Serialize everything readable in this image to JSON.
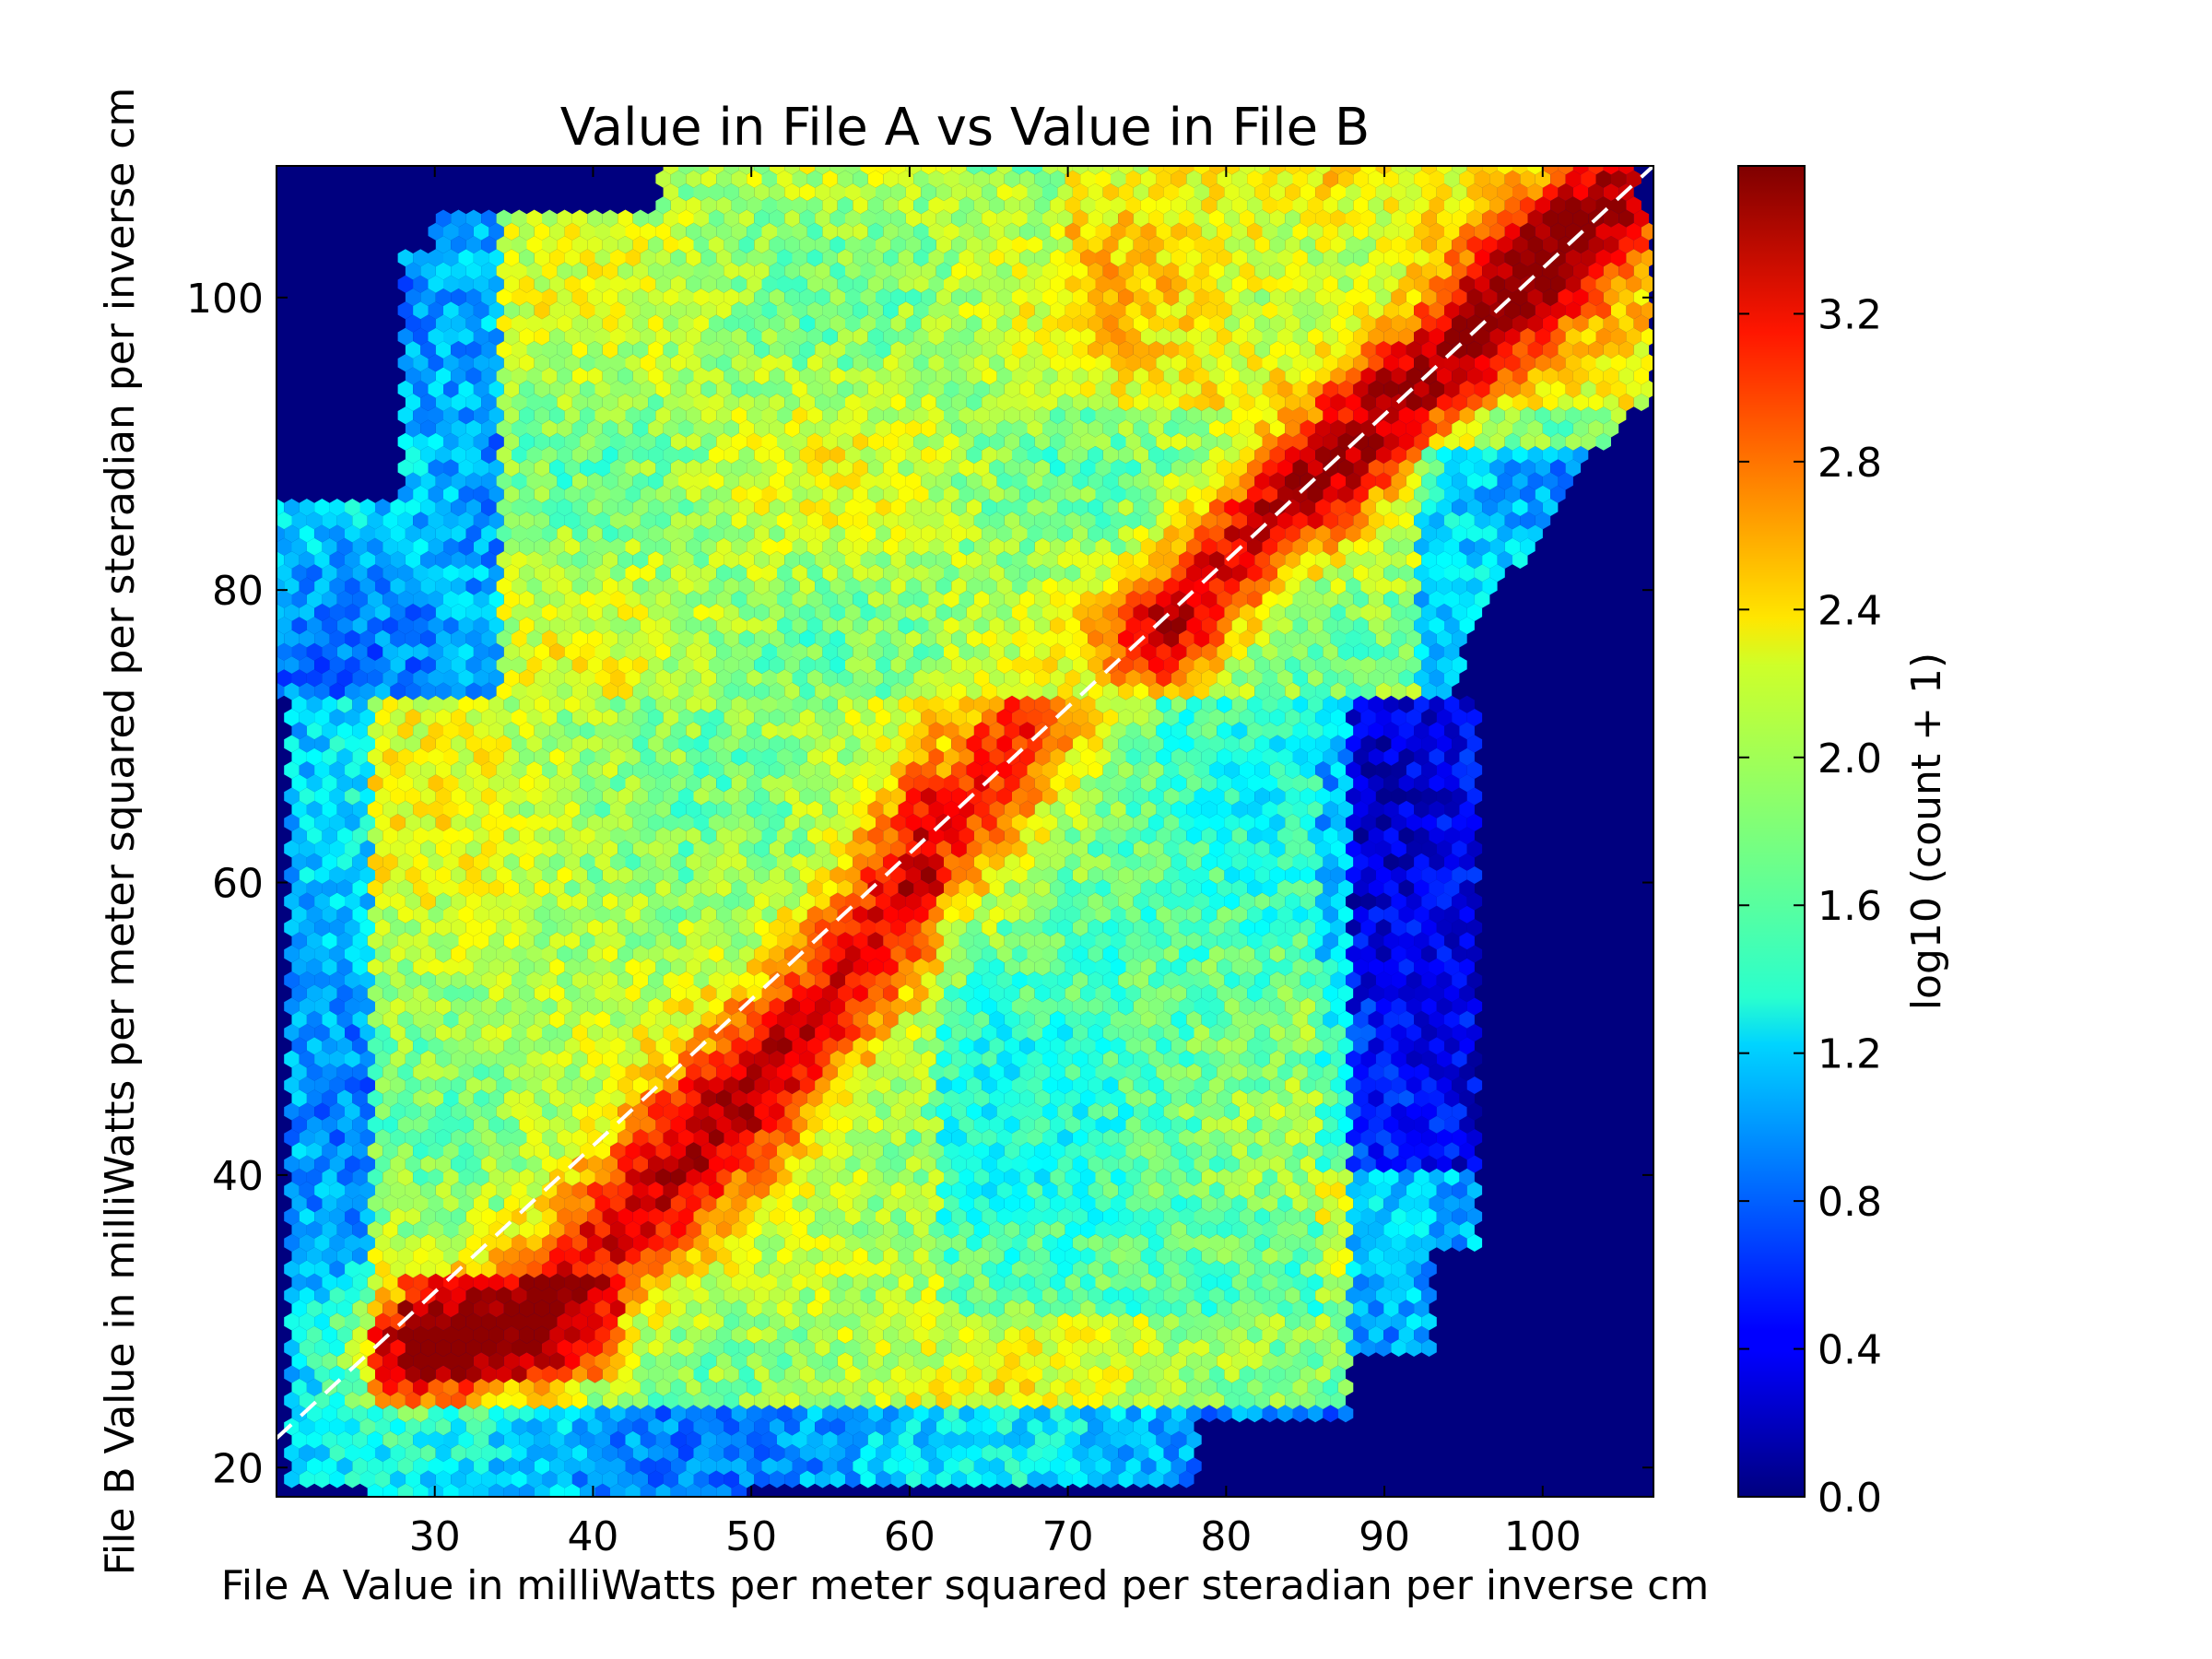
{
  "chart_data": {
    "type": "heatmap",
    "subtype": "hexbin",
    "title": "Value in File A vs Value in File B",
    "xlabel": "File A Value in milliWatts per meter squared per steradian per inverse cm",
    "ylabel": "File B Value in milliWatts per meter squared per steradian per inverse cm",
    "xlim": [
      20,
      107
    ],
    "ylim": [
      18,
      109
    ],
    "x_ticks": [
      "30",
      "40",
      "50",
      "60",
      "70",
      "80",
      "90",
      "100"
    ],
    "y_ticks": [
      "20",
      "40",
      "60",
      "80",
      "100"
    ],
    "colorbar": {
      "label": "log10 (count + 1)",
      "range": [
        0.0,
        3.6
      ],
      "ticks": [
        "0.0",
        "0.4",
        "0.8",
        "1.2",
        "1.6",
        "2.0",
        "2.4",
        "2.8",
        "3.2"
      ],
      "colormap": "jet"
    },
    "reference_line": {
      "style": "dashed",
      "color": "#ffffff",
      "from": [
        20,
        22
      ],
      "to": [
        107,
        109
      ]
    },
    "density_description": [
      {
        "region": "lower block",
        "x": [
          21,
          96
        ],
        "y": [
          18,
          73
        ]
      },
      {
        "region": "upper block",
        "x": [
          28,
          107
        ],
        "y": [
          73,
          109
        ]
      },
      {
        "region": "empty lower-right",
        "x": [
          94,
          107
        ],
        "y": [
          18,
          94
        ]
      },
      {
        "region": "empty upper-left",
        "x": [
          20,
          28
        ],
        "y": [
          86,
          109
        ]
      }
    ],
    "ridges": [
      {
        "name": "lower ridge",
        "points": [
          [
            28,
            28
          ],
          [
            36,
            30
          ],
          [
            45,
            40
          ],
          [
            55,
            52
          ],
          [
            62,
            63
          ],
          [
            68,
            72
          ]
        ]
      },
      {
        "name": "upper ridge",
        "points": [
          [
            76,
            77
          ],
          [
            82,
            84
          ],
          [
            88,
            90
          ],
          [
            95,
            97
          ],
          [
            101,
            104
          ],
          [
            104,
            107
          ]
        ]
      }
    ],
    "background_color": "#00007f"
  }
}
